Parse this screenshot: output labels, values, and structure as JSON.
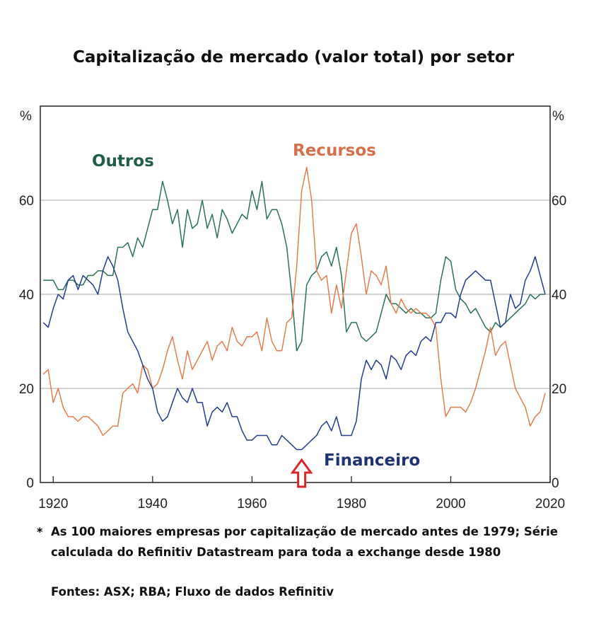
{
  "chart_data": {
    "type": "line",
    "title": "Capitalização de mercado (valor total) por setor",
    "ylabel_left": "%",
    "ylabel_right": "%",
    "xlim": [
      1917.4,
      2020
    ],
    "ylim": [
      0,
      80
    ],
    "yticks": [
      0,
      20,
      40,
      60
    ],
    "xticks": [
      1920,
      1940,
      1960,
      1980,
      2000,
      2020
    ],
    "grid": true,
    "x_start": 1918,
    "series": [
      {
        "name": "Outros",
        "color": "#2a7255",
        "label_color": "#1f5e45",
        "values": [
          43,
          43,
          43,
          41,
          41,
          43,
          43,
          42,
          42,
          44,
          44,
          45,
          45,
          44,
          44,
          50,
          50,
          51,
          48,
          52,
          50,
          54,
          58,
          58,
          64,
          60,
          55,
          58,
          50,
          58,
          54,
          55,
          60,
          54,
          57,
          52,
          58,
          56,
          53,
          55,
          57,
          56,
          62,
          58,
          64,
          56,
          58,
          58,
          55,
          50,
          40,
          28,
          30,
          42,
          44,
          45,
          48,
          49,
          46,
          50,
          44,
          32,
          34,
          34,
          31,
          30,
          31,
          32,
          36,
          40,
          38,
          38,
          37,
          36,
          37,
          36,
          36,
          35,
          35,
          36,
          43,
          48,
          47,
          41,
          39,
          38,
          36,
          37,
          35,
          33,
          32,
          34,
          33,
          34,
          35,
          36,
          37,
          38,
          40,
          39,
          40,
          40
        ]
      },
      {
        "name": "Recursos",
        "color": "#e37d4f",
        "label_color": "#d4704a",
        "values": [
          23,
          24,
          17,
          20,
          16,
          14,
          14,
          13,
          14,
          14,
          13,
          12,
          10,
          11,
          12,
          12,
          19,
          20,
          21,
          19,
          25,
          24,
          20,
          21,
          24,
          28,
          31,
          26,
          22,
          28,
          24,
          26,
          28,
          30,
          26,
          29,
          30,
          28,
          33,
          30,
          29,
          31,
          31,
          32,
          28,
          35,
          30,
          28,
          28,
          34,
          35,
          46,
          62,
          67,
          60,
          45,
          43,
          44,
          36,
          42,
          37,
          45,
          53,
          55,
          48,
          40,
          45,
          44,
          42,
          46,
          38,
          36,
          39,
          37,
          36,
          37,
          36,
          36,
          35,
          33,
          22,
          14,
          16,
          16,
          16,
          15,
          17,
          20,
          24,
          28,
          33,
          27,
          29,
          30,
          25,
          20,
          18,
          16,
          12,
          14,
          15,
          19
        ]
      },
      {
        "name": "Financeiro",
        "color": "#233d8c",
        "label_color": "#1f3370",
        "values": [
          34,
          33,
          37,
          40,
          39,
          43,
          44,
          41,
          44,
          43,
          42,
          40,
          45,
          48,
          46,
          43,
          37,
          32,
          30,
          28,
          25,
          22,
          20,
          15,
          13,
          14,
          17,
          20,
          18,
          17,
          20,
          17,
          17,
          12,
          15,
          16,
          15,
          17,
          14,
          14,
          11,
          9,
          9,
          10,
          10,
          10,
          8,
          8,
          10,
          9,
          8,
          7,
          7,
          8,
          9,
          10,
          12,
          13,
          11,
          14,
          10,
          10,
          10,
          13,
          22,
          26,
          24,
          26,
          25,
          22,
          27,
          26,
          24,
          27,
          28,
          27,
          30,
          31,
          30,
          34,
          34,
          36,
          36,
          35,
          40,
          43,
          44,
          45,
          44,
          43,
          43,
          38,
          33,
          34,
          40,
          37,
          38,
          43,
          45,
          48,
          44,
          40
        ]
      }
    ],
    "annotation": {
      "type": "arrow-up",
      "x": 1970,
      "color": "#d9262b"
    }
  },
  "footnotes": {
    "star": "*",
    "line1": "As 100 maiores empresas por capitalização de mercado antes de 1979; Série",
    "line2": "calculada do Refinitiv Datastream para toda a exchange desde 1980",
    "sources": "Fontes: ASX; RBA; Fluxo de dados Refinitiv"
  }
}
